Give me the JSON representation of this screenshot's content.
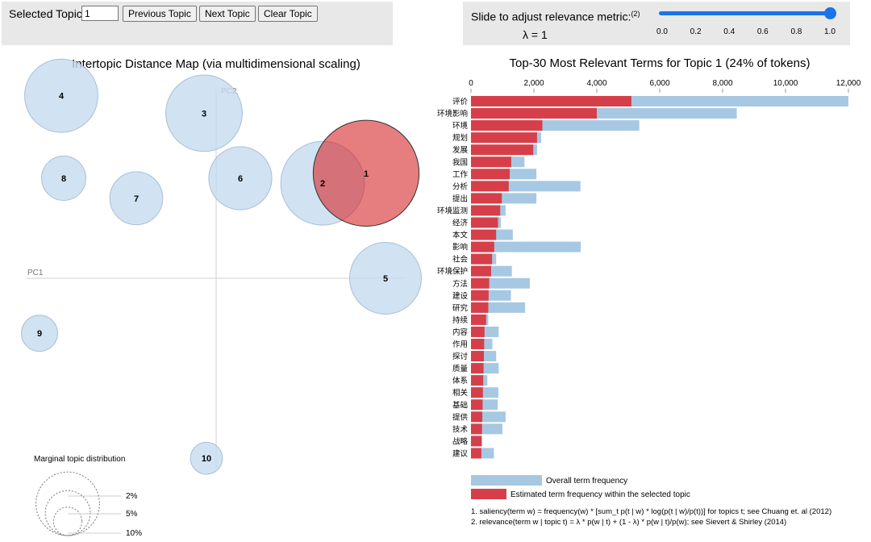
{
  "controls": {
    "selected_topic_label": "Selected Topic:",
    "selected_topic_value": "1",
    "prev_label": "Previous Topic",
    "next_label": "Next Topic",
    "clear_label": "Clear Topic",
    "slider_label": "Slide to adjust relevance metric:",
    "slider_footnote": "(2)",
    "lambda_text": "λ = 1",
    "lambda_value": 1.0,
    "slider_ticks": [
      "0.0",
      "0.2",
      "0.4",
      "0.6",
      "0.8",
      "1.0"
    ]
  },
  "colors": {
    "topic_bubble": "#c6dbef",
    "selected_bubble": "#d62728",
    "overall_bar": "#a6c8e3",
    "topic_bar": "#d63f49",
    "slider": "#1a73e8"
  },
  "chart_data": [
    {
      "type": "scatter",
      "title": "Intertopic Distance Map (via multidimensional scaling)",
      "xlabel": "PC1",
      "ylabel": "PC2",
      "topics": [
        {
          "id": "1",
          "pc1": 0.62,
          "pc2": 0.42,
          "share": 0.24,
          "selected": true
        },
        {
          "id": "2",
          "pc1": 0.44,
          "pc2": 0.38,
          "share": 0.15
        },
        {
          "id": "3",
          "pc1": -0.05,
          "pc2": 0.66,
          "share": 0.125
        },
        {
          "id": "4",
          "pc1": -0.64,
          "pc2": 0.73,
          "share": 0.115
        },
        {
          "id": "5",
          "pc1": 0.7,
          "pc2": 0.0,
          "share": 0.11
        },
        {
          "id": "6",
          "pc1": 0.1,
          "pc2": 0.4,
          "share": 0.085
        },
        {
          "id": "7",
          "pc1": -0.33,
          "pc2": 0.32,
          "share": 0.06
        },
        {
          "id": "8",
          "pc1": -0.63,
          "pc2": 0.4,
          "share": 0.042
        },
        {
          "id": "9",
          "pc1": -0.73,
          "pc2": -0.22,
          "share": 0.028
        },
        {
          "id": "10",
          "pc1": -0.04,
          "pc2": -0.72,
          "share": 0.022
        }
      ],
      "marginal_legend_title": "Marginal topic distribution",
      "marginal_legend": [
        {
          "label": "2%",
          "share": 0.02
        },
        {
          "label": "5%",
          "share": 0.05
        },
        {
          "label": "10%",
          "share": 0.1
        }
      ]
    },
    {
      "type": "bar",
      "orientation": "horizontal",
      "title": "Top-30 Most Relevant Terms for Topic 1 (24% of tokens)",
      "xlim": [
        0,
        12000
      ],
      "xticks": [
        "0",
        "2,000",
        "4,000",
        "6,000",
        "8,000",
        "10,000",
        "12,000"
      ],
      "categories": [
        "评价",
        "环境影响",
        "环境",
        "规划",
        "发展",
        "我国",
        "工作",
        "分析",
        "提出",
        "环境监测",
        "经济",
        "本文",
        "影响",
        "社会",
        "环境保护",
        "方法",
        "建设",
        "研究",
        "持续",
        "内容",
        "作用",
        "探讨",
        "质量",
        "体系",
        "相关",
        "基础",
        "提供",
        "技术",
        "战略",
        "建议"
      ],
      "series": [
        {
          "name": "Overall term frequency",
          "values": [
            12000,
            8450,
            5350,
            2230,
            2100,
            1700,
            2080,
            3480,
            2080,
            1100,
            950,
            1330,
            3490,
            800,
            1300,
            1870,
            1270,
            1720,
            550,
            880,
            680,
            800,
            880,
            520,
            870,
            850,
            1100,
            1000,
            350,
            730
          ]
        },
        {
          "name": "Estimated term frequency within the selected topic",
          "values": [
            5100,
            4000,
            2270,
            2100,
            1980,
            1280,
            1230,
            1200,
            980,
            930,
            860,
            800,
            740,
            670,
            640,
            580,
            560,
            550,
            480,
            430,
            420,
            410,
            400,
            390,
            380,
            370,
            360,
            350,
            340,
            330
          ]
        }
      ],
      "legend": [
        "Overall term frequency",
        "Estimated term frequency within the selected topic"
      ]
    }
  ],
  "footnotes": {
    "line1": "1. saliency(term w) = frequency(w) * [sum_t p(t | w) * log(p(t | w)/p(t))] for topics t; see Chuang et. al (2012)",
    "line2": "2. relevance(term w | topic t) = λ * p(w | t) + (1 - λ) * p(w | t)/p(w); see Sievert & Shirley (2014)"
  }
}
